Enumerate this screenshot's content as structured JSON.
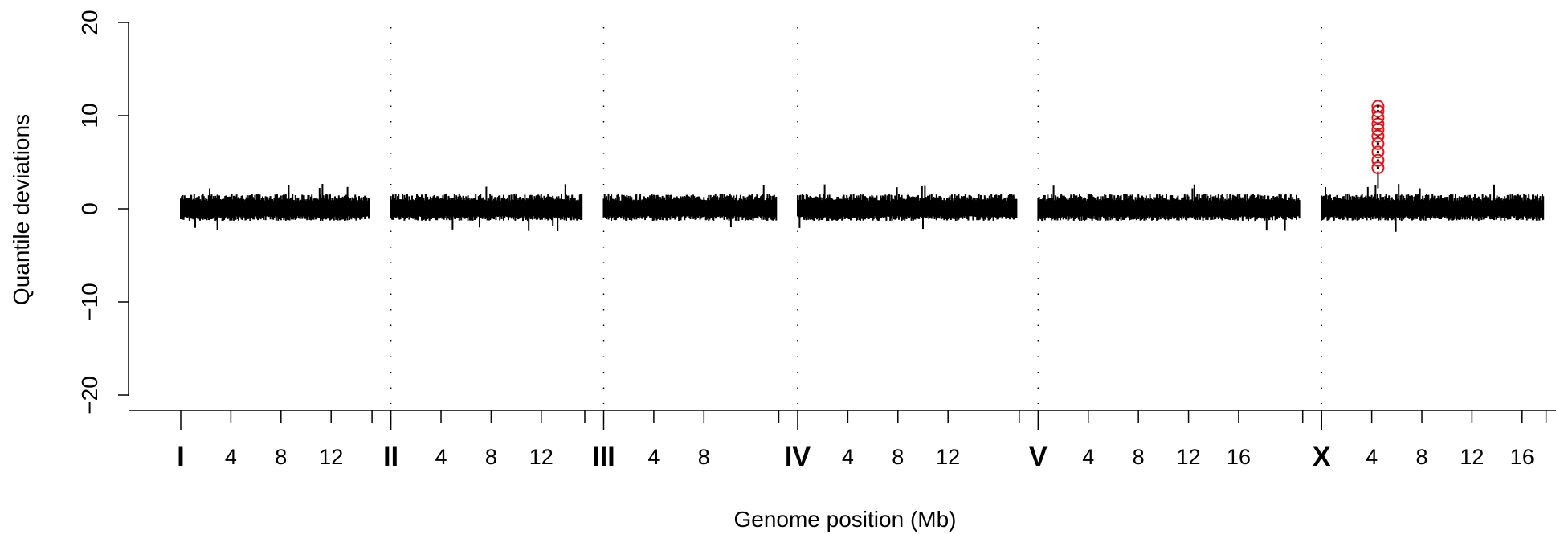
{
  "chart_data": {
    "type": "scatter",
    "title": "",
    "xlabel": "Genome position (Mb)",
    "ylabel": "Quantile deviations",
    "ylim": [
      -20,
      20
    ],
    "y_ticks": [
      "−20",
      "−10",
      "0",
      "10",
      "20"
    ],
    "grid": false,
    "chromosomes": [
      {
        "name": "I",
        "length_mb": 15.07,
        "tick_labels": [
          "4",
          "8",
          "12"
        ]
      },
      {
        "name": "II",
        "length_mb": 15.28,
        "tick_labels": [
          "4",
          "8",
          "12"
        ]
      },
      {
        "name": "III",
        "length_mb": 13.78,
        "tick_labels": [
          "4",
          "8"
        ]
      },
      {
        "name": "IV",
        "length_mb": 17.49,
        "tick_labels": [
          "4",
          "8",
          "12"
        ]
      },
      {
        "name": "V",
        "length_mb": 20.92,
        "tick_labels": [
          "4",
          "8",
          "12",
          "16"
        ]
      },
      {
        "name": "X",
        "length_mb": 17.72,
        "tick_labels": [
          "4",
          "8",
          "12",
          "16"
        ]
      }
    ],
    "baseline": {
      "mean": 0,
      "band_low": -1.3,
      "band_high": 1.6,
      "max_spike": 2.7,
      "min_spike": -2.6
    },
    "outliers": {
      "chromosome": "X",
      "position_mb": 4.5,
      "values": [
        4.4,
        5.2,
        6.1,
        7.0,
        7.8,
        8.5,
        9.1,
        9.8,
        10.5,
        11.0
      ],
      "color": "#e0161d"
    },
    "colors": {
      "points": "#000000",
      "highlight": "#e0161d"
    }
  }
}
